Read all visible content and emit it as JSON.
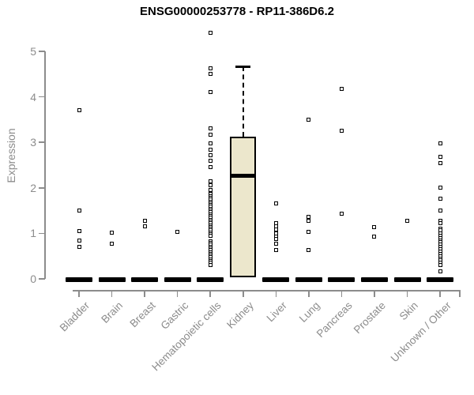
{
  "chart_data": {
    "type": "boxplot",
    "title": "ENSG00000253778 - RP11-386D6.2",
    "ylabel": "Expression",
    "ylim": [
      0,
      5.5
    ],
    "yticks": [
      0,
      1,
      2,
      3,
      4,
      5
    ],
    "grid": false,
    "legend": "none",
    "categories": [
      "Bladder",
      "Brain",
      "Breast",
      "Gastric",
      "Hematopoietic cells",
      "Kidney",
      "Liver",
      "Lung",
      "Pancreas",
      "Prostate",
      "Skin",
      "Unknown / Other"
    ],
    "series": [
      {
        "category": "Bladder",
        "median": 0,
        "points": [
          3.7,
          1.5,
          1.05,
          0.85,
          0.7
        ]
      },
      {
        "category": "Brain",
        "median": 0,
        "points": [
          1.02,
          0.78
        ]
      },
      {
        "category": "Breast",
        "median": 0,
        "points": [
          1.27,
          1.15
        ]
      },
      {
        "category": "Gastric",
        "median": 0,
        "points": [
          1.04
        ]
      },
      {
        "category": "Hematopoietic cells",
        "median": 0,
        "points": [
          5.4,
          4.62,
          4.5,
          4.1,
          3.3,
          3.17,
          2.98,
          2.84,
          2.72,
          2.6,
          2.45,
          2.15,
          2.05,
          1.95,
          1.87,
          1.82,
          1.78,
          1.74,
          1.7,
          1.66,
          1.62,
          1.58,
          1.54,
          1.5,
          1.46,
          1.42,
          1.38,
          1.34,
          1.3,
          1.26,
          1.22,
          1.18,
          1.14,
          1.1,
          1.06,
          1.02,
          0.98,
          0.95,
          0.83,
          0.79,
          0.75,
          0.71,
          0.67,
          0.63,
          0.59,
          0.55,
          0.51,
          0.47,
          0.43,
          0.39,
          0.35,
          0.31
        ]
      },
      {
        "category": "Kidney",
        "box": {
          "whisker_high": 4.67,
          "q3": 3.12,
          "median": 2.27,
          "q1": 0.04
        },
        "points": []
      },
      {
        "category": "Liver",
        "median": 0,
        "points": [
          1.65,
          1.22,
          1.15,
          1.08,
          1.0,
          0.93,
          0.87,
          0.78,
          0.63
        ]
      },
      {
        "category": "Lung",
        "median": 0,
        "points": [
          3.49,
          1.37,
          1.27,
          1.04,
          0.64
        ]
      },
      {
        "category": "Pancreas",
        "median": 0,
        "points": [
          4.17,
          3.26,
          1.44
        ]
      },
      {
        "category": "Prostate",
        "median": 0,
        "points": [
          1.14,
          0.93
        ]
      },
      {
        "category": "Skin",
        "median": 0,
        "points": [
          1.28
        ]
      },
      {
        "category": "Unknown / Other",
        "median": 0,
        "points": [
          2.97,
          2.69,
          2.55,
          2.01,
          1.76,
          1.5,
          1.28,
          1.22,
          1.1,
          1.06,
          1.0,
          0.95,
          0.9,
          0.85,
          0.8,
          0.75,
          0.7,
          0.65,
          0.6,
          0.55,
          0.5,
          0.45,
          0.4,
          0.35,
          0.31,
          0.17
        ]
      }
    ],
    "colors": {
      "box_fill": "#ECE7CC",
      "box_border": "#000000",
      "marker": "#000000",
      "axis": "#8C8C8C",
      "zero_bar": "#000000",
      "title": "#000000"
    }
  }
}
